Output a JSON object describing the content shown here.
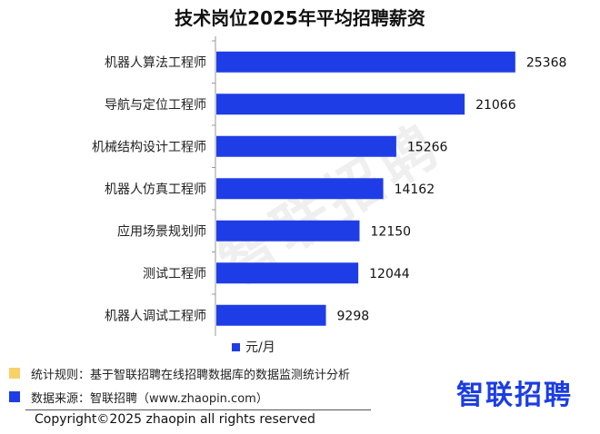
{
  "chart_data": {
    "type": "bar",
    "orientation": "horizontal",
    "title": "技术岗位2025年平均招聘薪资",
    "categories": [
      "机器人算法工程师",
      "导航与定位工程师",
      "机械结构设计工程师",
      "机器人仿真工程师",
      "应用场景规划师",
      "测试工程师",
      "机器人调试工程师"
    ],
    "values": [
      25368,
      21066,
      15266,
      14162,
      12150,
      12044,
      9298
    ],
    "series": [
      {
        "name": "元/月",
        "values": [
          25368,
          21066,
          15266,
          14162,
          12150,
          12044,
          9298
        ]
      }
    ],
    "xlim": [
      0,
      27000
    ],
    "grid": false,
    "legend": "bottom",
    "color": "#1f3de6"
  },
  "notes": [
    {
      "text": "统计规则：基于智联招聘在线招聘数据库的数据监测统计分析",
      "color": "#f7d266"
    },
    {
      "text": "数据来源：智联招聘（www.zhaopin.com）",
      "color": "#1f3de6"
    }
  ],
  "brand": "智联招聘",
  "watermark": "智联招聘",
  "copyright": "Copyright©2025 zhaopin all rights reserved"
}
